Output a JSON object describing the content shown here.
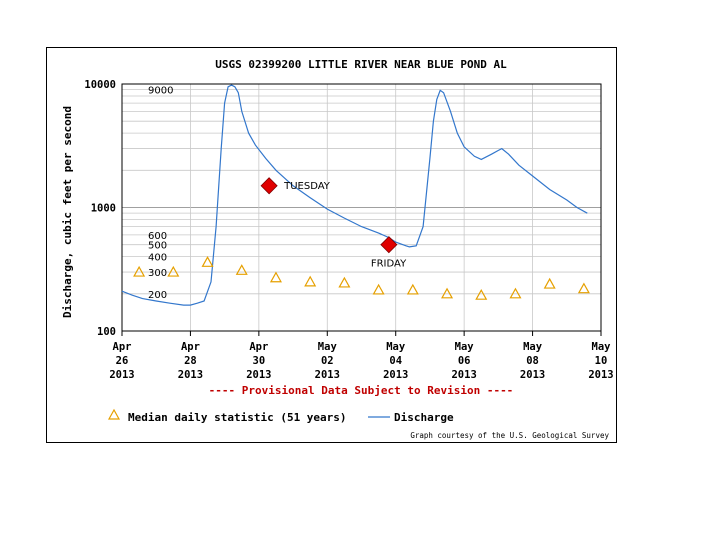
{
  "chart_data": {
    "type": "line",
    "title": "USGS 02399200 LITTLE RIVER NEAR BLUE POND AL",
    "ylabel": "Discharge, cubic feet per second",
    "yscale": "log",
    "ylim": [
      100,
      10000
    ],
    "y_major_ticks": [
      "100",
      "1000",
      "10000"
    ],
    "y_minor_labels": [
      {
        "value": 200,
        "label": "200"
      },
      {
        "value": 300,
        "label": "300"
      },
      {
        "value": 400,
        "label": "400"
      },
      {
        "value": 500,
        "label": "500"
      },
      {
        "value": 600,
        "label": "600"
      },
      {
        "value": 9000,
        "label": "9000"
      }
    ],
    "xlim": [
      0,
      14
    ],
    "x_ticks": [
      {
        "day": 0,
        "label": [
          "Apr",
          "26",
          "2013"
        ]
      },
      {
        "day": 2,
        "label": [
          "Apr",
          "28",
          "2013"
        ]
      },
      {
        "day": 4,
        "label": [
          "Apr",
          "30",
          "2013"
        ]
      },
      {
        "day": 6,
        "label": [
          "May",
          "02",
          "2013"
        ]
      },
      {
        "day": 8,
        "label": [
          "May",
          "04",
          "2013"
        ]
      },
      {
        "day": 10,
        "label": [
          "May",
          "06",
          "2013"
        ]
      },
      {
        "day": 12,
        "label": [
          "May",
          "08",
          "2013"
        ]
      },
      {
        "day": 14,
        "label": [
          "May",
          "10",
          "2013"
        ]
      }
    ],
    "grid": true,
    "series": [
      {
        "name": "Discharge",
        "color": "#3377cc",
        "style": "line",
        "points": [
          [
            0.0,
            210
          ],
          [
            0.3,
            195
          ],
          [
            0.6,
            183
          ],
          [
            1.0,
            175
          ],
          [
            1.4,
            168
          ],
          [
            1.8,
            162
          ],
          [
            2.0,
            162
          ],
          [
            2.2,
            168
          ],
          [
            2.4,
            175
          ],
          [
            2.6,
            250
          ],
          [
            2.75,
            700
          ],
          [
            2.9,
            3000
          ],
          [
            3.0,
            7000
          ],
          [
            3.1,
            9500
          ],
          [
            3.2,
            9800
          ],
          [
            3.3,
            9500
          ],
          [
            3.4,
            8500
          ],
          [
            3.5,
            6000
          ],
          [
            3.7,
            4000
          ],
          [
            3.9,
            3200
          ],
          [
            4.2,
            2500
          ],
          [
            4.5,
            2000
          ],
          [
            5.0,
            1500
          ],
          [
            5.5,
            1200
          ],
          [
            6.0,
            970
          ],
          [
            6.5,
            820
          ],
          [
            7.0,
            700
          ],
          [
            7.5,
            620
          ],
          [
            7.8,
            570
          ],
          [
            8.0,
            525
          ],
          [
            8.3,
            490
          ],
          [
            8.4,
            480
          ],
          [
            8.6,
            490
          ],
          [
            8.8,
            700
          ],
          [
            9.0,
            2500
          ],
          [
            9.1,
            5000
          ],
          [
            9.2,
            7500
          ],
          [
            9.3,
            8900
          ],
          [
            9.4,
            8500
          ],
          [
            9.6,
            6000
          ],
          [
            9.8,
            4000
          ],
          [
            10.0,
            3100
          ],
          [
            10.3,
            2600
          ],
          [
            10.5,
            2450
          ],
          [
            10.8,
            2700
          ],
          [
            11.0,
            2900
          ],
          [
            11.1,
            3000
          ],
          [
            11.3,
            2700
          ],
          [
            11.6,
            2200
          ],
          [
            12.0,
            1800
          ],
          [
            12.5,
            1400
          ],
          [
            13.0,
            1150
          ],
          [
            13.3,
            1000
          ],
          [
            13.6,
            900
          ]
        ]
      },
      {
        "name": "Median daily statistic (51 years)",
        "color": "#e6a000",
        "style": "triangle",
        "points": [
          [
            0.5,
            300
          ],
          [
            1.5,
            300
          ],
          [
            2.5,
            360
          ],
          [
            3.5,
            310
          ],
          [
            4.5,
            270
          ],
          [
            5.5,
            250
          ],
          [
            6.5,
            245
          ],
          [
            7.5,
            215
          ],
          [
            8.5,
            215
          ],
          [
            9.5,
            200
          ],
          [
            10.5,
            195
          ],
          [
            11.5,
            200
          ],
          [
            12.5,
            240
          ],
          [
            13.5,
            220
          ]
        ]
      }
    ],
    "annotations": [
      {
        "label": "TUESDAY",
        "day": 4.3,
        "value": 1500,
        "color": "#e00000"
      },
      {
        "label": "FRIDAY",
        "day": 7.8,
        "value": 500,
        "color": "#e00000"
      }
    ],
    "provisional_note": "---- Provisional Data Subject to Revision ----",
    "legend": {
      "position": "bottom",
      "median_label": "Median daily statistic (51 years)",
      "discharge_label": "Discharge"
    },
    "courtesy": "Graph courtesy of the U.S. Geological Survey"
  }
}
